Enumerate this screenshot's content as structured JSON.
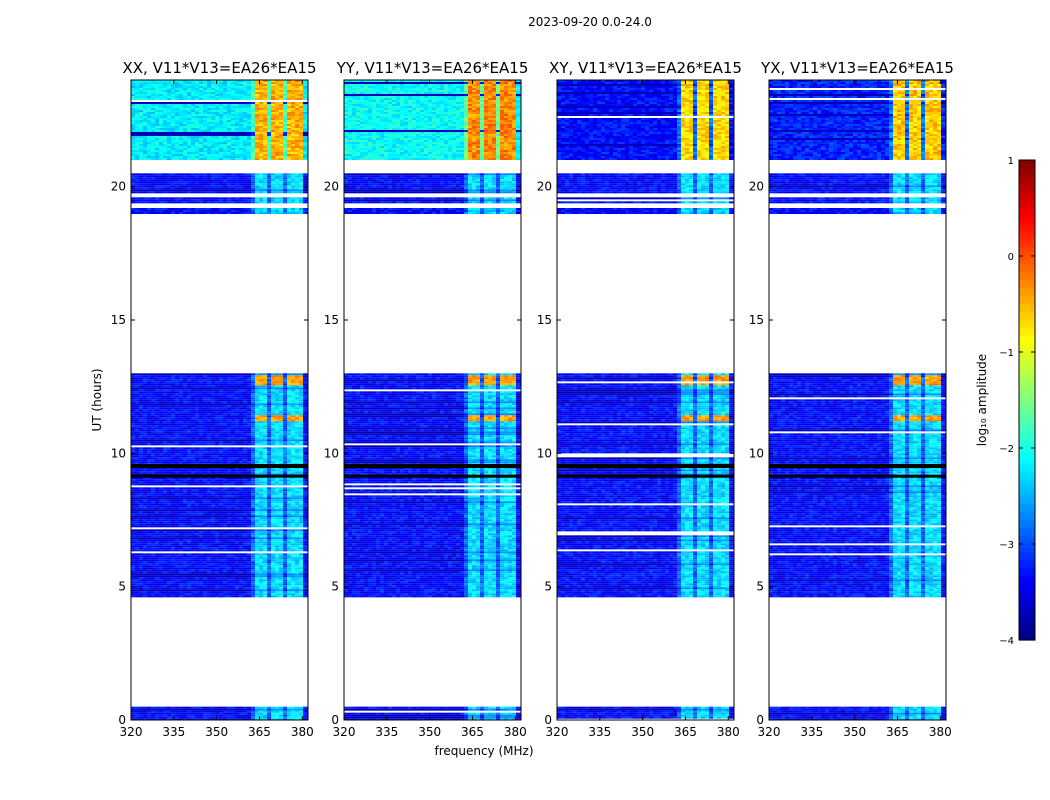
{
  "chart_data": {
    "type": "heatmap",
    "suptitle": "2023-09-20 0.0-24.0",
    "xlabel": "frequency (MHz)",
    "ylabel": "UT (hours)",
    "xlim": [
      320,
      382
    ],
    "ylim": [
      0,
      24
    ],
    "xticks": [
      "320",
      "335",
      "350",
      "365",
      "380"
    ],
    "yticks": [
      "0",
      "5",
      "10",
      "15",
      "20"
    ],
    "colorbar": {
      "label": "log₁₀ amplitude",
      "range": [
        -4,
        1
      ],
      "ticks": [
        "1",
        "0",
        "−1",
        "−2",
        "−3",
        "−4"
      ]
    },
    "panels": [
      {
        "title": "XX, V11*V13=EA26*EA15",
        "early_level": -2.2,
        "rfi_top_level": -0.5
      },
      {
        "title": "YY, V11*V13=EA26*EA15",
        "early_level": -2.1,
        "rfi_top_level": -0.3
      },
      {
        "title": "XY, V11*V13=EA26*EA15",
        "early_level": -3.3,
        "rfi_top_level": -0.7
      },
      {
        "title": "YX, V11*V13=EA26*EA15",
        "early_level": -3.2,
        "rfi_top_level": -0.6
      }
    ],
    "data_blocks_hours": [
      [
        0.0,
        0.5
      ],
      [
        4.6,
        13.0
      ],
      [
        19.0,
        19.2
      ],
      [
        19.4,
        19.6
      ],
      [
        19.8,
        20.5
      ],
      [
        21.0,
        24.0
      ]
    ],
    "rfi_band_centers_mhz": [
      365.5,
      371.5,
      377.5
    ],
    "rfi_band_edges_mhz": [
      362.5,
      380.0
    ]
  }
}
